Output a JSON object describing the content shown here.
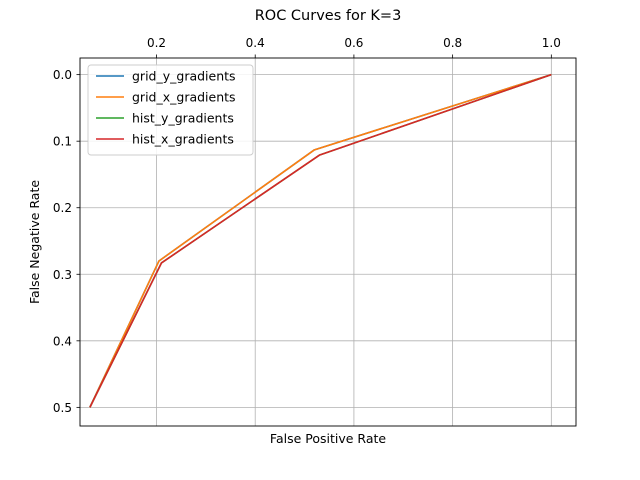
{
  "chart_data": {
    "type": "line",
    "title": "ROC Curves for K=3",
    "xlabel": "False Positive Rate",
    "ylabel": "False Negative Rate",
    "xlim": [
      0.045,
      1.05
    ],
    "ylim": [
      0.528,
      -0.025
    ],
    "x_ticks": [
      0.2,
      0.4,
      0.6,
      0.8,
      1.0
    ],
    "x_tick_labels": [
      "0.2",
      "0.4",
      "0.6",
      "0.8",
      "1.0"
    ],
    "y_ticks": [
      0.0,
      0.1,
      0.2,
      0.3,
      0.4,
      0.5
    ],
    "y_tick_labels": [
      "0.0",
      "0.1",
      "0.2",
      "0.3",
      "0.4",
      "0.5"
    ],
    "x_axis_position": "top",
    "y_inverted": true,
    "grid": true,
    "legend_position": "top-left",
    "series": [
      {
        "name": "grid_y_gradients",
        "color": "#1f77b4",
        "x": [
          0.065,
          0.205,
          0.52,
          1.0
        ],
        "y": [
          0.5,
          0.28,
          0.113,
          0.0
        ]
      },
      {
        "name": "grid_x_gradients",
        "color": "#ff7f0e",
        "x": [
          0.065,
          0.205,
          0.52,
          1.0
        ],
        "y": [
          0.5,
          0.28,
          0.113,
          0.0
        ]
      },
      {
        "name": "hist_y_gradients",
        "color": "#2ca02c",
        "x": [
          0.065,
          0.21,
          0.53,
          1.0
        ],
        "y": [
          0.5,
          0.283,
          0.121,
          0.0
        ]
      },
      {
        "name": "hist_x_gradients",
        "color": "#d62728",
        "x": [
          0.065,
          0.21,
          0.53,
          1.0
        ],
        "y": [
          0.5,
          0.283,
          0.121,
          0.0
        ]
      }
    ]
  }
}
